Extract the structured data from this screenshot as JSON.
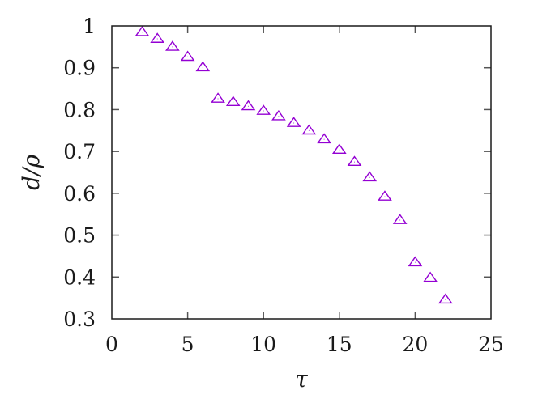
{
  "chart_data": {
    "type": "scatter",
    "title": "",
    "xlabel": "τ",
    "ylabel": "d/ρ",
    "xlim": [
      0,
      25
    ],
    "ylim": [
      0.3,
      1.0
    ],
    "xticks": [
      0,
      5,
      10,
      15,
      20,
      25
    ],
    "xtick_labels": [
      "0",
      "5",
      "10",
      "15",
      "20",
      "25"
    ],
    "yticks": [
      0.3,
      0.4,
      0.5,
      0.6,
      0.7,
      0.8,
      0.9,
      1.0
    ],
    "ytick_labels": [
      "0.3",
      "0.4",
      "0.5",
      "0.6",
      "0.7",
      "0.8",
      "0.9",
      "1"
    ],
    "grid": false,
    "legend": null,
    "mirror_ticks": true,
    "series": [
      {
        "name": "d/rho",
        "marker": "open-triangle",
        "color": "#9400d3",
        "x": [
          2,
          3,
          4,
          5,
          6,
          7,
          8,
          9,
          10,
          11,
          12,
          13,
          14,
          15,
          16,
          17,
          18,
          19,
          20,
          21,
          22
        ],
        "y": [
          0.985,
          0.969,
          0.95,
          0.926,
          0.901,
          0.826,
          0.818,
          0.808,
          0.797,
          0.784,
          0.768,
          0.75,
          0.729,
          0.704,
          0.675,
          0.638,
          0.592,
          0.536,
          0.435,
          0.398,
          0.346
        ]
      }
    ]
  }
}
